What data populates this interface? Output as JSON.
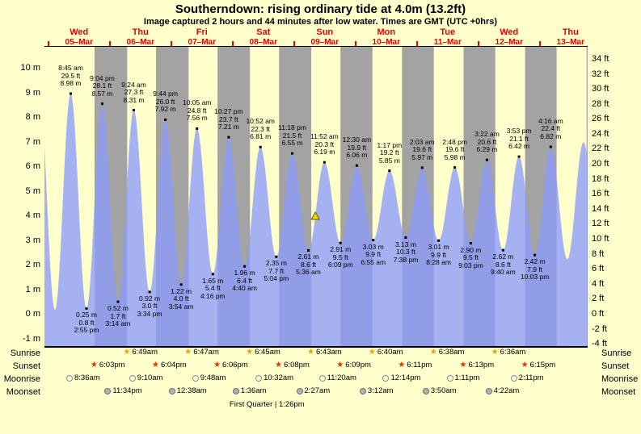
{
  "title": "Southerndown: rising ordinary tide at 4.0m (13.2ft)",
  "subtitle": "Image captured 2 hours and 44 minutes after low water. Times are GMT (UTC +0hrs)",
  "colors": {
    "background": "#ffffcc",
    "night_band": "#a3a3a3",
    "tide_fill": "rgba(140,155,250,0.78)",
    "date_red": "#e80000",
    "marker_yellow": "#f2d500"
  },
  "chart_data": {
    "type": "area",
    "title": "Southerndown: rising ordinary tide at 4.0m (13.2ft)",
    "x_axis": {
      "unit": "hours_from_march5_midnight",
      "start": -1.5,
      "end": 210.7,
      "day_labels": [
        {
          "weekday": "Wed",
          "date": "05–Mar"
        },
        {
          "weekday": "Thu",
          "date": "06–Mar"
        },
        {
          "weekday": "Fri",
          "date": "07–Mar"
        },
        {
          "weekday": "Sat",
          "date": "08–Mar"
        },
        {
          "weekday": "Sun",
          "date": "09–Mar"
        },
        {
          "weekday": "Mon",
          "date": "10–Mar"
        },
        {
          "weekday": "Tue",
          "date": "11–Mar"
        },
        {
          "weekday": "Wed",
          "date": "12–Mar"
        },
        {
          "weekday": "Thu",
          "date": "13–Mar"
        }
      ]
    },
    "y_axis_left": {
      "unit": "m",
      "ticks": [
        10,
        9,
        8,
        7,
        6,
        5,
        4,
        3,
        2,
        1,
        0,
        -1
      ]
    },
    "y_axis_right": {
      "unit": "ft",
      "ticks": [
        34,
        32,
        30,
        28,
        26,
        24,
        22,
        20,
        18,
        16,
        14,
        12,
        10,
        8,
        6,
        4,
        2,
        0,
        -2,
        -4
      ]
    },
    "tide_events": [
      {
        "type": "high",
        "t": -3.58,
        "height_m": 9.1,
        "labeled": false
      },
      {
        "type": "low",
        "t": 2.58,
        "height_m": 0.2,
        "labeled": false
      },
      {
        "type": "high",
        "t": 8.75,
        "height_m": 8.98,
        "height_ft": 29.5,
        "time": "8:45 am",
        "labeled": true
      },
      {
        "type": "low",
        "t": 14.92,
        "height_m": 0.25,
        "height_ft": 0.8,
        "time": "2:55 pm",
        "labeled": true
      },
      {
        "type": "high",
        "t": 21.07,
        "height_m": 8.57,
        "height_ft": 28.1,
        "time": "9:04 pm",
        "labeled": true
      },
      {
        "type": "low",
        "t": 27.23,
        "height_m": 0.52,
        "height_ft": 1.7,
        "time": "3:14 am",
        "labeled": true
      },
      {
        "type": "high",
        "t": 33.4,
        "height_m": 8.31,
        "height_ft": 27.3,
        "time": "9:24 am",
        "labeled": true
      },
      {
        "type": "low",
        "t": 39.57,
        "height_m": 0.92,
        "height_ft": 3.0,
        "time": "3:34 pm",
        "labeled": true
      },
      {
        "type": "high",
        "t": 45.73,
        "height_m": 7.92,
        "height_ft": 26.0,
        "time": "9:44 pm",
        "labeled": true
      },
      {
        "type": "low",
        "t": 51.9,
        "height_m": 1.22,
        "height_ft": 4.0,
        "time": "3:54 am",
        "labeled": true
      },
      {
        "type": "high",
        "t": 58.08,
        "height_m": 7.56,
        "height_ft": 24.8,
        "time": "10:05 am",
        "labeled": true
      },
      {
        "type": "low",
        "t": 64.27,
        "height_m": 1.65,
        "height_ft": 5.4,
        "time": "4:16 pm",
        "labeled": true
      },
      {
        "type": "high",
        "t": 70.45,
        "height_m": 7.21,
        "height_ft": 23.7,
        "time": "10:27 pm",
        "labeled": true
      },
      {
        "type": "low",
        "t": 76.67,
        "height_m": 1.96,
        "height_ft": 6.4,
        "time": "4:40 am",
        "labeled": true
      },
      {
        "type": "high",
        "t": 82.87,
        "height_m": 6.81,
        "height_ft": 22.3,
        "time": "10:52 am",
        "labeled": true
      },
      {
        "type": "low",
        "t": 89.07,
        "height_m": 2.35,
        "height_ft": 7.7,
        "time": "5:04 pm",
        "labeled": true
      },
      {
        "type": "high",
        "t": 95.3,
        "height_m": 6.55,
        "height_ft": 21.5,
        "time": "11:18 pm",
        "labeled": true
      },
      {
        "type": "low",
        "t": 101.6,
        "height_m": 2.61,
        "height_ft": 8.6,
        "time": "5:36 am",
        "labeled": true
      },
      {
        "type": "high",
        "t": 107.87,
        "height_m": 6.19,
        "height_ft": 20.3,
        "time": "11:52 am",
        "labeled": true
      },
      {
        "type": "low",
        "t": 114.15,
        "height_m": 2.91,
        "height_ft": 9.5,
        "time": "6:09 pm",
        "labeled": true
      },
      {
        "type": "high",
        "t": 120.5,
        "height_m": 6.06,
        "height_ft": 19.9,
        "time": "12:30 am",
        "labeled": true
      },
      {
        "type": "low",
        "t": 126.92,
        "height_m": 3.03,
        "height_ft": 9.9,
        "time": "6:55 am",
        "labeled": true
      },
      {
        "type": "high",
        "t": 133.28,
        "height_m": 5.85,
        "height_ft": 19.2,
        "time": "1:17 pm",
        "labeled": true
      },
      {
        "type": "low",
        "t": 139.63,
        "height_m": 3.13,
        "height_ft": 10.3,
        "time": "7:38 pm",
        "labeled": true
      },
      {
        "type": "high",
        "t": 146.05,
        "height_m": 5.97,
        "height_ft": 19.6,
        "time": "2:03 am",
        "labeled": true
      },
      {
        "type": "low",
        "t": 152.47,
        "height_m": 3.01,
        "height_ft": 9.9,
        "time": "8:28 am",
        "labeled": true
      },
      {
        "type": "high",
        "t": 158.8,
        "height_m": 5.98,
        "height_ft": 19.6,
        "time": "2:48 pm",
        "labeled": true
      },
      {
        "type": "low",
        "t": 165.05,
        "height_m": 2.9,
        "height_ft": 9.5,
        "time": "9:03 pm",
        "labeled": true
      },
      {
        "type": "high",
        "t": 171.37,
        "height_m": 6.29,
        "height_ft": 20.6,
        "time": "3:22 am",
        "labeled": true
      },
      {
        "type": "low",
        "t": 177.67,
        "height_m": 2.62,
        "height_ft": 8.6,
        "time": "9:40 am",
        "labeled": true
      },
      {
        "type": "high",
        "t": 183.88,
        "height_m": 6.42,
        "height_ft": 21.1,
        "time": "3:53 pm",
        "labeled": true
      },
      {
        "type": "low",
        "t": 190.05,
        "height_m": 2.42,
        "height_ft": 7.9,
        "time": "10:03 pm",
        "labeled": true
      },
      {
        "type": "high",
        "t": 196.27,
        "height_m": 6.82,
        "height_ft": 22.4,
        "time": "4:16 am",
        "labeled": true
      },
      {
        "type": "low",
        "t": 202.75,
        "height_m": 2.25,
        "labeled": false
      },
      {
        "type": "high",
        "t": 209.08,
        "height_m": 7.0,
        "labeled": false
      },
      {
        "type": "low",
        "t": 215.4,
        "height_m": 2.3,
        "labeled": false
      }
    ],
    "night_bands": [
      [
        18.05,
        30.82
      ],
      [
        42.07,
        54.78
      ],
      [
        66.1,
        78.75
      ],
      [
        90.13,
        102.72
      ],
      [
        114.15,
        126.67
      ],
      [
        138.18,
        150.63
      ],
      [
        162.22,
        174.6
      ],
      [
        186.25,
        198.57
      ],
      [
        210.28,
        210.7
      ]
    ],
    "current_level_marker": {
      "t": 104.33,
      "height_m": 4.0,
      "symbol": "triangle",
      "color": "#f2d500"
    }
  },
  "astro": {
    "rows": [
      {
        "id": "sunrise",
        "label": "Sunrise",
        "icon": "star",
        "icon_color": "#dfa900",
        "entries": [
          {
            "time": "6:49am",
            "t": 30.82
          },
          {
            "time": "6:47am",
            "t": 54.78
          },
          {
            "time": "6:45am",
            "t": 78.75
          },
          {
            "time": "6:43am",
            "t": 102.72
          },
          {
            "time": "6:40am",
            "t": 126.67
          },
          {
            "time": "6:38am",
            "t": 150.63
          },
          {
            "time": "6:36am",
            "t": 174.6
          }
        ]
      },
      {
        "id": "sunset",
        "label": "Sunset",
        "icon": "star",
        "icon_color": "#e23400",
        "entries": [
          {
            "time": "6:03pm",
            "t": 18.05
          },
          {
            "time": "6:04pm",
            "t": 42.07
          },
          {
            "time": "6:06pm",
            "t": 66.1
          },
          {
            "time": "6:08pm",
            "t": 90.13
          },
          {
            "time": "6:09pm",
            "t": 114.15
          },
          {
            "time": "6:11pm",
            "t": 138.18
          },
          {
            "time": "6:13pm",
            "t": 162.22
          },
          {
            "time": "6:15pm",
            "t": 186.25
          }
        ]
      },
      {
        "id": "moonrise",
        "label": "Moonrise",
        "icon": "circle",
        "icon_fill": "#ffffe8",
        "icon_border": "#8a8a8a",
        "entries": [
          {
            "time": "8:36am",
            "t": 8.6
          },
          {
            "time": "9:10am",
            "t": 33.17
          },
          {
            "time": "9:48am",
            "t": 57.8
          },
          {
            "time": "10:32am",
            "t": 82.53
          },
          {
            "time": "11:20am",
            "t": 107.33
          },
          {
            "time": "12:14pm",
            "t": 132.23
          },
          {
            "time": "1:11pm",
            "t": 157.18
          },
          {
            "time": "2:11pm",
            "t": 182.18
          }
        ]
      },
      {
        "id": "moonset",
        "label": "Moonset",
        "icon": "circle",
        "icon_fill": "#b2b2b2",
        "icon_border": "#6e6e6e",
        "entries": [
          {
            "time": "11:34pm",
            "t": 23.57
          },
          {
            "time": "12:38am",
            "t": 48.63
          },
          {
            "time": "1:36am",
            "t": 73.6
          },
          {
            "time": "2:27am",
            "t": 98.45
          },
          {
            "time": "3:12am",
            "t": 123.2
          },
          {
            "time": "3:50am",
            "t": 147.83
          },
          {
            "time": "4:22am",
            "t": 172.37
          }
        ]
      }
    ],
    "footer": {
      "text": "First Quarter | 1:26pm",
      "t": 85.43
    }
  }
}
